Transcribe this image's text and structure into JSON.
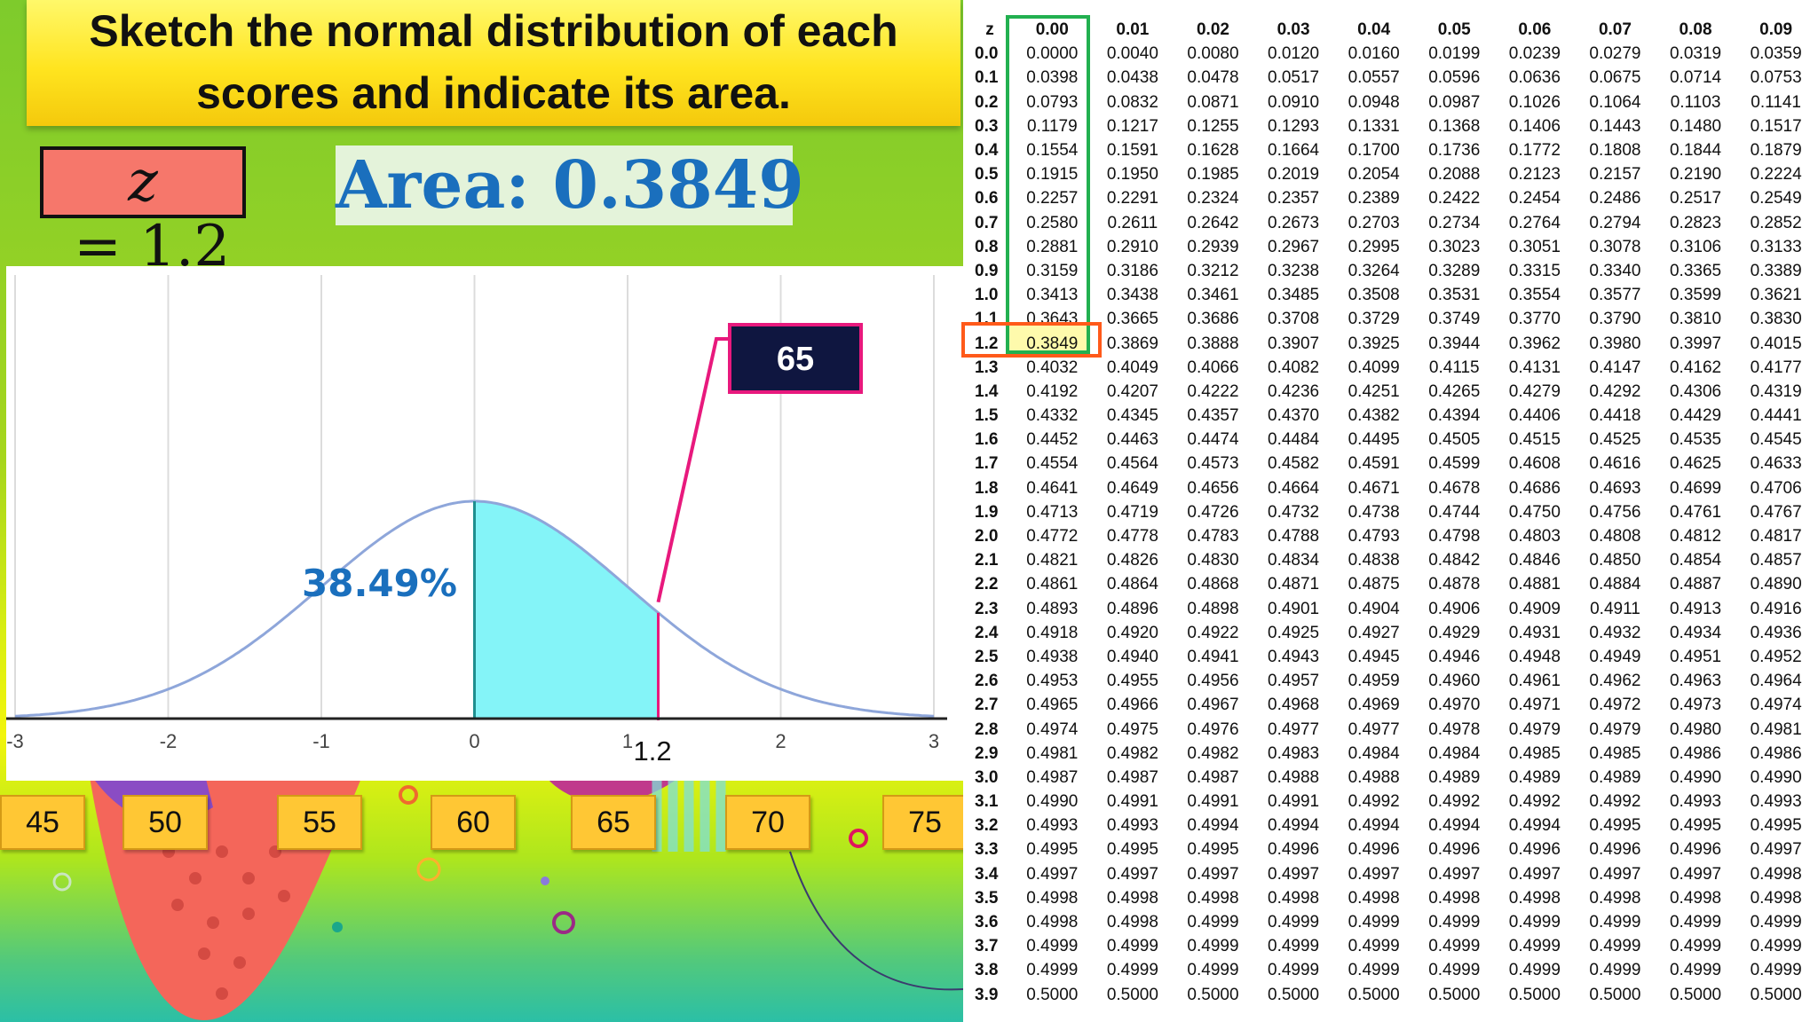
{
  "slide": {
    "title_line1": "Sketch the normal distribution of each",
    "title_line2": "scores and indicate its area.",
    "z_box": {
      "variable": "z",
      "equals": " = ",
      "value": "1.2"
    },
    "area_label": "Area: 0.3849",
    "colors": {
      "shade": "#84f4f8",
      "curve": "#8ea6da",
      "pointer": "#e8197d",
      "area_text": "#1a6fbd",
      "z_box_fill": "#f6776b"
    }
  },
  "chart_data": {
    "type": "area",
    "distribution": "standard normal",
    "xlim": [
      -3,
      3
    ],
    "x_ticks": [
      "-3",
      "-2",
      "-1",
      "0",
      "1",
      "2",
      "3"
    ],
    "shaded_from": 0,
    "shaded_to": 1.2,
    "marker_label": "1.2",
    "percent_label": "38.49%",
    "callout_label": "65",
    "grid": true
  },
  "score_boxes": [
    "45",
    "50",
    "55",
    "60",
    "65",
    "70",
    "75"
  ],
  "ztable": {
    "header": [
      "z",
      "0.00",
      "0.01",
      "0.02",
      "0.03",
      "0.04",
      "0.05",
      "0.06",
      "0.07",
      "0.08",
      "0.09"
    ],
    "rows": [
      [
        "0.0",
        "0.0000",
        "0.0040",
        "0.0080",
        "0.0120",
        "0.0160",
        "0.0199",
        "0.0239",
        "0.0279",
        "0.0319",
        "0.0359"
      ],
      [
        "0.1",
        "0.0398",
        "0.0438",
        "0.0478",
        "0.0517",
        "0.0557",
        "0.0596",
        "0.0636",
        "0.0675",
        "0.0714",
        "0.0753"
      ],
      [
        "0.2",
        "0.0793",
        "0.0832",
        "0.0871",
        "0.0910",
        "0.0948",
        "0.0987",
        "0.1026",
        "0.1064",
        "0.1103",
        "0.1141"
      ],
      [
        "0.3",
        "0.1179",
        "0.1217",
        "0.1255",
        "0.1293",
        "0.1331",
        "0.1368",
        "0.1406",
        "0.1443",
        "0.1480",
        "0.1517"
      ],
      [
        "0.4",
        "0.1554",
        "0.1591",
        "0.1628",
        "0.1664",
        "0.1700",
        "0.1736",
        "0.1772",
        "0.1808",
        "0.1844",
        "0.1879"
      ],
      [
        "0.5",
        "0.1915",
        "0.1950",
        "0.1985",
        "0.2019",
        "0.2054",
        "0.2088",
        "0.2123",
        "0.2157",
        "0.2190",
        "0.2224"
      ],
      [
        "0.6",
        "0.2257",
        "0.2291",
        "0.2324",
        "0.2357",
        "0.2389",
        "0.2422",
        "0.2454",
        "0.2486",
        "0.2517",
        "0.2549"
      ],
      [
        "0.7",
        "0.2580",
        "0.2611",
        "0.2642",
        "0.2673",
        "0.2703",
        "0.2734",
        "0.2764",
        "0.2794",
        "0.2823",
        "0.2852"
      ],
      [
        "0.8",
        "0.2881",
        "0.2910",
        "0.2939",
        "0.2967",
        "0.2995",
        "0.3023",
        "0.3051",
        "0.3078",
        "0.3106",
        "0.3133"
      ],
      [
        "0.9",
        "0.3159",
        "0.3186",
        "0.3212",
        "0.3238",
        "0.3264",
        "0.3289",
        "0.3315",
        "0.3340",
        "0.3365",
        "0.3389"
      ],
      [
        "1.0",
        "0.3413",
        "0.3438",
        "0.3461",
        "0.3485",
        "0.3508",
        "0.3531",
        "0.3554",
        "0.3577",
        "0.3599",
        "0.3621"
      ],
      [
        "1.1",
        "0.3643",
        "0.3665",
        "0.3686",
        "0.3708",
        "0.3729",
        "0.3749",
        "0.3770",
        "0.3790",
        "0.3810",
        "0.3830"
      ],
      [
        "1.2",
        "0.3849",
        "0.3869",
        "0.3888",
        "0.3907",
        "0.3925",
        "0.3944",
        "0.3962",
        "0.3980",
        "0.3997",
        "0.4015"
      ],
      [
        "1.3",
        "0.4032",
        "0.4049",
        "0.4066",
        "0.4082",
        "0.4099",
        "0.4115",
        "0.4131",
        "0.4147",
        "0.4162",
        "0.4177"
      ],
      [
        "1.4",
        "0.4192",
        "0.4207",
        "0.4222",
        "0.4236",
        "0.4251",
        "0.4265",
        "0.4279",
        "0.4292",
        "0.4306",
        "0.4319"
      ],
      [
        "1.5",
        "0.4332",
        "0.4345",
        "0.4357",
        "0.4370",
        "0.4382",
        "0.4394",
        "0.4406",
        "0.4418",
        "0.4429",
        "0.4441"
      ],
      [
        "1.6",
        "0.4452",
        "0.4463",
        "0.4474",
        "0.4484",
        "0.4495",
        "0.4505",
        "0.4515",
        "0.4525",
        "0.4535",
        "0.4545"
      ],
      [
        "1.7",
        "0.4554",
        "0.4564",
        "0.4573",
        "0.4582",
        "0.4591",
        "0.4599",
        "0.4608",
        "0.4616",
        "0.4625",
        "0.4633"
      ],
      [
        "1.8",
        "0.4641",
        "0.4649",
        "0.4656",
        "0.4664",
        "0.4671",
        "0.4678",
        "0.4686",
        "0.4693",
        "0.4699",
        "0.4706"
      ],
      [
        "1.9",
        "0.4713",
        "0.4719",
        "0.4726",
        "0.4732",
        "0.4738",
        "0.4744",
        "0.4750",
        "0.4756",
        "0.4761",
        "0.4767"
      ],
      [
        "2.0",
        "0.4772",
        "0.4778",
        "0.4783",
        "0.4788",
        "0.4793",
        "0.4798",
        "0.4803",
        "0.4808",
        "0.4812",
        "0.4817"
      ],
      [
        "2.1",
        "0.4821",
        "0.4826",
        "0.4830",
        "0.4834",
        "0.4838",
        "0.4842",
        "0.4846",
        "0.4850",
        "0.4854",
        "0.4857"
      ],
      [
        "2.2",
        "0.4861",
        "0.4864",
        "0.4868",
        "0.4871",
        "0.4875",
        "0.4878",
        "0.4881",
        "0.4884",
        "0.4887",
        "0.4890"
      ],
      [
        "2.3",
        "0.4893",
        "0.4896",
        "0.4898",
        "0.4901",
        "0.4904",
        "0.4906",
        "0.4909",
        "0.4911",
        "0.4913",
        "0.4916"
      ],
      [
        "2.4",
        "0.4918",
        "0.4920",
        "0.4922",
        "0.4925",
        "0.4927",
        "0.4929",
        "0.4931",
        "0.4932",
        "0.4934",
        "0.4936"
      ],
      [
        "2.5",
        "0.4938",
        "0.4940",
        "0.4941",
        "0.4943",
        "0.4945",
        "0.4946",
        "0.4948",
        "0.4949",
        "0.4951",
        "0.4952"
      ],
      [
        "2.6",
        "0.4953",
        "0.4955",
        "0.4956",
        "0.4957",
        "0.4959",
        "0.4960",
        "0.4961",
        "0.4962",
        "0.4963",
        "0.4964"
      ],
      [
        "2.7",
        "0.4965",
        "0.4966",
        "0.4967",
        "0.4968",
        "0.4969",
        "0.4970",
        "0.4971",
        "0.4972",
        "0.4973",
        "0.4974"
      ],
      [
        "2.8",
        "0.4974",
        "0.4975",
        "0.4976",
        "0.4977",
        "0.4977",
        "0.4978",
        "0.4979",
        "0.4979",
        "0.4980",
        "0.4981"
      ],
      [
        "2.9",
        "0.4981",
        "0.4982",
        "0.4982",
        "0.4983",
        "0.4984",
        "0.4984",
        "0.4985",
        "0.4985",
        "0.4986",
        "0.4986"
      ],
      [
        "3.0",
        "0.4987",
        "0.4987",
        "0.4987",
        "0.4988",
        "0.4988",
        "0.4989",
        "0.4989",
        "0.4989",
        "0.4990",
        "0.4990"
      ],
      [
        "3.1",
        "0.4990",
        "0.4991",
        "0.4991",
        "0.4991",
        "0.4992",
        "0.4992",
        "0.4992",
        "0.4992",
        "0.4993",
        "0.4993"
      ],
      [
        "3.2",
        "0.4993",
        "0.4993",
        "0.4994",
        "0.4994",
        "0.4994",
        "0.4994",
        "0.4994",
        "0.4995",
        "0.4995",
        "0.4995"
      ],
      [
        "3.3",
        "0.4995",
        "0.4995",
        "0.4995",
        "0.4996",
        "0.4996",
        "0.4996",
        "0.4996",
        "0.4996",
        "0.4996",
        "0.4997"
      ],
      [
        "3.4",
        "0.4997",
        "0.4997",
        "0.4997",
        "0.4997",
        "0.4997",
        "0.4997",
        "0.4997",
        "0.4997",
        "0.4997",
        "0.4998"
      ],
      [
        "3.5",
        "0.4998",
        "0.4998",
        "0.4998",
        "0.4998",
        "0.4998",
        "0.4998",
        "0.4998",
        "0.4998",
        "0.4998",
        "0.4998"
      ],
      [
        "3.6",
        "0.4998",
        "0.4998",
        "0.4999",
        "0.4999",
        "0.4999",
        "0.4999",
        "0.4999",
        "0.4999",
        "0.4999",
        "0.4999"
      ],
      [
        "3.7",
        "0.4999",
        "0.4999",
        "0.4999",
        "0.4999",
        "0.4999",
        "0.4999",
        "0.4999",
        "0.4999",
        "0.4999",
        "0.4999"
      ],
      [
        "3.8",
        "0.4999",
        "0.4999",
        "0.4999",
        "0.4999",
        "0.4999",
        "0.4999",
        "0.4999",
        "0.4999",
        "0.4999",
        "0.4999"
      ],
      [
        "3.9",
        "0.5000",
        "0.5000",
        "0.5000",
        "0.5000",
        "0.5000",
        "0.5000",
        "0.5000",
        "0.5000",
        "0.5000",
        "0.5000"
      ]
    ],
    "highlight_row": "1.2",
    "highlight_col": "0.00"
  }
}
